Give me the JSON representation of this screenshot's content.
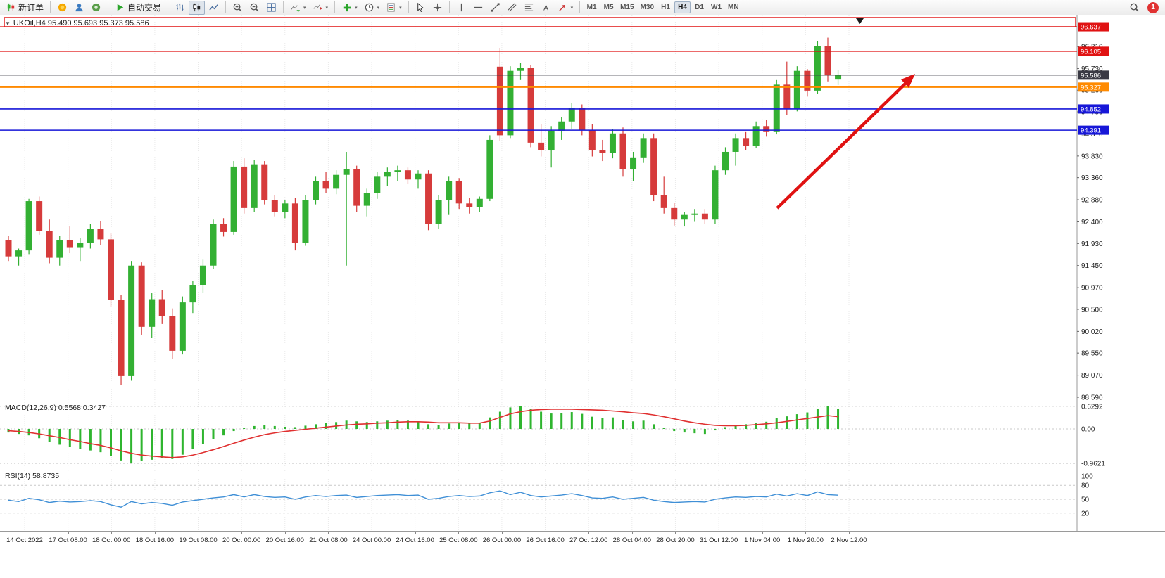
{
  "colors": {
    "up": "#33b033",
    "down": "#d63b3b",
    "accent_red": "#e01212",
    "level_blue": "#1717d8",
    "level_orange": "#ff8a00",
    "bid_dark": "#3a3a44",
    "macd_hist": "#2fb52f",
    "macd_signal": "#e03030",
    "rsi_line": "#3f8fd6"
  },
  "toolbar": {
    "items": [
      {
        "t": "btn",
        "name": "new-order-button",
        "icon": "new-order",
        "label": "新订单"
      },
      {
        "t": "sep"
      },
      {
        "t": "btn",
        "name": "metaquotes-button",
        "icon": "mq-gold"
      },
      {
        "t": "btn",
        "name": "community-button",
        "icon": "profile-blue"
      },
      {
        "t": "btn",
        "name": "mql5-button",
        "icon": "mql5-green"
      },
      {
        "t": "sep"
      },
      {
        "t": "btn",
        "name": "autotrading-button",
        "icon": "play-green",
        "label": "自动交易"
      },
      {
        "t": "sep"
      },
      {
        "t": "btn",
        "name": "bar-chart-button",
        "icon": "bar-chart"
      },
      {
        "t": "btn",
        "name": "candle-chart-button",
        "icon": "candle-chart",
        "active": true
      },
      {
        "t": "btn",
        "name": "line-chart-button",
        "icon": "line-chart"
      },
      {
        "t": "sep"
      },
      {
        "t": "btn",
        "name": "zoom-in-button",
        "icon": "zoom-in"
      },
      {
        "t": "btn",
        "name": "zoom-out-button",
        "icon": "zoom-out"
      },
      {
        "t": "btn",
        "name": "tile-windows-button",
        "icon": "tile-windows"
      },
      {
        "t": "sep"
      },
      {
        "t": "btn",
        "name": "autoscroll-button",
        "icon": "chart-scroll",
        "arrow": true
      },
      {
        "t": "btn",
        "name": "chart-shift-button",
        "icon": "chart-shift",
        "arrow": true
      },
      {
        "t": "sep"
      },
      {
        "t": "btn",
        "name": "indicators-button",
        "icon": "plus-green",
        "arrow": true
      },
      {
        "t": "btn",
        "name": "periods-button",
        "icon": "clock",
        "arrow": true
      },
      {
        "t": "btn",
        "name": "templates-button",
        "icon": "template",
        "arrow": true
      },
      {
        "t": "sep"
      },
      {
        "t": "btn",
        "name": "cursor-button",
        "icon": "cursor"
      },
      {
        "t": "btn",
        "name": "crosshair-button",
        "icon": "crosshair"
      },
      {
        "t": "sep"
      },
      {
        "t": "btn",
        "name": "vertical-line-button",
        "icon": "vline"
      },
      {
        "t": "btn",
        "name": "horizontal-line-button",
        "icon": "hline"
      },
      {
        "t": "btn",
        "name": "trendline-button",
        "icon": "trendline"
      },
      {
        "t": "btn",
        "name": "channel-button",
        "icon": "channel"
      },
      {
        "t": "btn",
        "name": "fibonacci-button",
        "icon": "fibo"
      },
      {
        "t": "btn",
        "name": "text-label-button",
        "icon": "text"
      },
      {
        "t": "btn",
        "name": "arrows-tool-button",
        "icon": "arrows",
        "arrow": true
      },
      {
        "t": "sep"
      }
    ],
    "timeframes": [
      "M1",
      "M5",
      "M15",
      "M30",
      "H1",
      "H4",
      "D1",
      "W1",
      "MN"
    ],
    "active_timeframe": "H4",
    "notification_count": "1"
  },
  "chart_data": {
    "type": "candlestick",
    "symbol": "UKOil,H4",
    "title": "UKOil,H4  95.490 95.693 95.373 95.586",
    "ohlc_display": [
      "95.490",
      "95.693",
      "95.373",
      "95.586"
    ],
    "price_axis": [
      "96.210",
      "95.730",
      "95.260",
      "94.790",
      "94.310",
      "93.830",
      "93.360",
      "92.880",
      "92.400",
      "91.930",
      "91.450",
      "90.970",
      "90.500",
      "90.020",
      "89.550",
      "89.070",
      "88.590"
    ],
    "levels": [
      {
        "price": 96.637,
        "label": "96.637",
        "color": "#e01212",
        "width": 1.4
      },
      {
        "price": 96.105,
        "label": "96.105",
        "color": "#e01212",
        "width": 1.4
      },
      {
        "price": 95.586,
        "label": "95.586",
        "color": "#3a3a44",
        "width": 1.1
      },
      {
        "price": 95.327,
        "label": "95.327",
        "color": "#ff8a00",
        "width": 2
      },
      {
        "price": 94.852,
        "label": "94.852",
        "color": "#1717d8",
        "width": 1.6
      },
      {
        "price": 94.391,
        "label": "94.391",
        "color": "#1717d8",
        "width": 1.6
      }
    ],
    "time_axis": [
      "14 Oct 2022",
      "17 Oct 08:00",
      "18 Oct 00:00",
      "18 Oct 16:00",
      "19 Oct 08:00",
      "20 Oct 00:00",
      "20 Oct 16:00",
      "21 Oct 08:00",
      "24 Oct 00:00",
      "24 Oct 16:00",
      "25 Oct 08:00",
      "26 Oct 00:00",
      "26 Oct 16:00",
      "27 Oct 12:00",
      "28 Oct 04:00",
      "28 Oct 20:00",
      "31 Oct 12:00",
      "1 Nov 04:00",
      "1 Nov 20:00",
      "2 Nov 12:00"
    ],
    "candles": [
      [
        92.0,
        92.1,
        91.55,
        91.65
      ],
      [
        91.65,
        91.82,
        91.45,
        91.78
      ],
      [
        91.78,
        92.9,
        91.7,
        92.85
      ],
      [
        92.85,
        92.95,
        92.12,
        92.2
      ],
      [
        92.2,
        92.45,
        91.5,
        91.62
      ],
      [
        91.62,
        92.1,
        91.45,
        92.0
      ],
      [
        92.0,
        92.3,
        91.72,
        91.85
      ],
      [
        91.85,
        92.05,
        91.55,
        91.95
      ],
      [
        91.95,
        92.35,
        91.82,
        92.25
      ],
      [
        92.25,
        92.42,
        91.9,
        92.02
      ],
      [
        92.02,
        92.15,
        90.55,
        90.7
      ],
      [
        90.7,
        90.82,
        88.85,
        89.05
      ],
      [
        89.05,
        91.55,
        88.95,
        91.45
      ],
      [
        91.45,
        91.52,
        89.95,
        90.12
      ],
      [
        90.12,
        90.85,
        89.88,
        90.72
      ],
      [
        90.72,
        90.92,
        90.18,
        90.35
      ],
      [
        90.35,
        90.52,
        89.42,
        89.6
      ],
      [
        89.6,
        90.78,
        89.52,
        90.65
      ],
      [
        90.65,
        91.12,
        90.42,
        91.02
      ],
      [
        91.02,
        91.58,
        90.85,
        91.45
      ],
      [
        91.45,
        92.45,
        91.38,
        92.35
      ],
      [
        92.35,
        92.48,
        92.08,
        92.18
      ],
      [
        92.18,
        93.72,
        92.12,
        93.6
      ],
      [
        93.6,
        93.78,
        92.58,
        92.7
      ],
      [
        92.7,
        93.75,
        92.62,
        93.65
      ],
      [
        93.65,
        93.72,
        92.78,
        92.88
      ],
      [
        92.88,
        92.98,
        92.52,
        92.62
      ],
      [
        92.62,
        92.88,
        92.48,
        92.8
      ],
      [
        92.8,
        92.92,
        91.78,
        91.95
      ],
      [
        91.95,
        92.98,
        91.88,
        92.88
      ],
      [
        92.88,
        93.38,
        92.78,
        93.28
      ],
      [
        93.28,
        93.48,
        93.02,
        93.12
      ],
      [
        93.12,
        93.52,
        93.0,
        93.42
      ],
      [
        93.42,
        93.92,
        91.45,
        93.55
      ],
      [
        93.55,
        93.62,
        92.62,
        92.75
      ],
      [
        92.75,
        93.12,
        92.52,
        93.02
      ],
      [
        93.02,
        93.48,
        92.9,
        93.38
      ],
      [
        93.38,
        93.58,
        93.18,
        93.48
      ],
      [
        93.48,
        93.62,
        93.28,
        93.52
      ],
      [
        93.52,
        93.58,
        93.22,
        93.32
      ],
      [
        93.32,
        93.52,
        93.12,
        93.45
      ],
      [
        93.45,
        93.52,
        92.22,
        92.35
      ],
      [
        92.35,
        92.98,
        92.25,
        92.88
      ],
      [
        92.88,
        93.38,
        92.55,
        93.28
      ],
      [
        93.28,
        93.35,
        92.68,
        92.8
      ],
      [
        92.8,
        92.92,
        92.58,
        92.72
      ],
      [
        92.72,
        92.95,
        92.62,
        92.9
      ],
      [
        92.9,
        94.28,
        92.85,
        94.18
      ],
      [
        95.77,
        96.18,
        94.15,
        94.28
      ],
      [
        94.28,
        95.78,
        94.22,
        95.68
      ],
      [
        95.68,
        95.85,
        95.48,
        95.75
      ],
      [
        95.75,
        95.8,
        94.02,
        94.12
      ],
      [
        94.12,
        94.52,
        93.82,
        93.95
      ],
      [
        93.95,
        94.48,
        93.58,
        94.38
      ],
      [
        94.38,
        94.68,
        94.18,
        94.58
      ],
      [
        94.58,
        94.98,
        94.42,
        94.88
      ],
      [
        94.88,
        94.95,
        94.28,
        94.4
      ],
      [
        94.4,
        94.52,
        93.82,
        93.95
      ],
      [
        93.95,
        94.18,
        93.72,
        93.9
      ],
      [
        93.9,
        94.42,
        93.78,
        94.32
      ],
      [
        94.32,
        94.45,
        93.38,
        93.55
      ],
      [
        93.55,
        93.92,
        93.28,
        93.8
      ],
      [
        93.8,
        94.32,
        93.68,
        94.22
      ],
      [
        94.22,
        94.32,
        92.85,
        92.98
      ],
      [
        92.98,
        93.38,
        92.58,
        92.7
      ],
      [
        92.7,
        92.82,
        92.32,
        92.45
      ],
      [
        92.45,
        92.62,
        92.3,
        92.55
      ],
      [
        92.55,
        92.68,
        92.4,
        92.58
      ],
      [
        92.58,
        92.68,
        92.35,
        92.45
      ],
      [
        92.45,
        93.62,
        92.35,
        93.52
      ],
      [
        93.52,
        94.02,
        93.42,
        93.92
      ],
      [
        93.92,
        94.32,
        93.62,
        94.22
      ],
      [
        94.22,
        94.35,
        93.95,
        94.05
      ],
      [
        94.05,
        94.58,
        94.0,
        94.48
      ],
      [
        94.48,
        94.62,
        94.25,
        94.35
      ],
      [
        94.35,
        95.48,
        94.3,
        95.38
      ],
      [
        95.38,
        95.88,
        94.72,
        94.85
      ],
      [
        94.85,
        95.78,
        94.8,
        95.68
      ],
      [
        95.68,
        95.72,
        95.12,
        95.25
      ],
      [
        95.25,
        96.32,
        95.18,
        96.22
      ],
      [
        96.22,
        96.4,
        95.45,
        95.58
      ],
      [
        95.49,
        95.693,
        95.373,
        95.586
      ]
    ],
    "macd": {
      "label": "MACD(12,26,9) 0.5568 0.3427",
      "axis": [
        {
          "v": 0.6292,
          "label": "0.6292"
        },
        {
          "v": 0,
          "label": "0.00"
        },
        {
          "v": -0.9621,
          "label": "-0.9621"
        }
      ],
      "histogram": [
        -0.1,
        -0.14,
        -0.18,
        -0.26,
        -0.36,
        -0.44,
        -0.5,
        -0.55,
        -0.6,
        -0.65,
        -0.76,
        -0.88,
        -0.9621,
        -0.9,
        -0.86,
        -0.82,
        -0.84,
        -0.72,
        -0.56,
        -0.42,
        -0.28,
        -0.18,
        -0.06,
        0.03,
        0.08,
        0.1,
        0.08,
        0.06,
        0.05,
        0.09,
        0.13,
        0.16,
        0.19,
        0.23,
        0.21,
        0.19,
        0.21,
        0.23,
        0.25,
        0.23,
        0.21,
        0.13,
        0.11,
        0.15,
        0.17,
        0.15,
        0.16,
        0.32,
        0.48,
        0.6,
        0.63,
        0.55,
        0.48,
        0.43,
        0.45,
        0.47,
        0.42,
        0.34,
        0.3,
        0.32,
        0.24,
        0.21,
        0.23,
        0.13,
        0.03,
        -0.06,
        -0.1,
        -0.12,
        -0.14,
        -0.04,
        0.05,
        0.11,
        0.13,
        0.17,
        0.2,
        0.3,
        0.35,
        0.41,
        0.46,
        0.55,
        0.6292,
        0.5568
      ],
      "signal": [
        -0.05,
        -0.07,
        -0.1,
        -0.14,
        -0.19,
        -0.24,
        -0.3,
        -0.35,
        -0.41,
        -0.46,
        -0.53,
        -0.61,
        -0.68,
        -0.73,
        -0.76,
        -0.78,
        -0.8,
        -0.78,
        -0.73,
        -0.66,
        -0.58,
        -0.49,
        -0.4,
        -0.31,
        -0.23,
        -0.16,
        -0.11,
        -0.07,
        -0.04,
        -0.01,
        0.02,
        0.05,
        0.08,
        0.11,
        0.13,
        0.14,
        0.16,
        0.17,
        0.19,
        0.2,
        0.2,
        0.19,
        0.17,
        0.17,
        0.17,
        0.16,
        0.16,
        0.22,
        0.32,
        0.42,
        0.48,
        0.52,
        0.54,
        0.55,
        0.55,
        0.55,
        0.54,
        0.53,
        0.52,
        0.5,
        0.48,
        0.45,
        0.43,
        0.39,
        0.34,
        0.28,
        0.22,
        0.17,
        0.13,
        0.1,
        0.09,
        0.09,
        0.1,
        0.12,
        0.14,
        0.17,
        0.21,
        0.25,
        0.29,
        0.33,
        0.37,
        0.3427
      ]
    },
    "rsi": {
      "label": "RSI(14) 58.8735",
      "axis": [
        {
          "v": 100,
          "label": "100"
        },
        {
          "v": 80,
          "label": "80"
        },
        {
          "v": 50,
          "label": "50"
        },
        {
          "v": 20,
          "label": "20"
        }
      ],
      "dashed_levels": [
        80,
        50,
        20
      ],
      "values": [
        48,
        45,
        52,
        49,
        43,
        46,
        44,
        45,
        47,
        45,
        38,
        33,
        45,
        40,
        43,
        41,
        37,
        44,
        47,
        50,
        53,
        55,
        60,
        55,
        60,
        56,
        54,
        55,
        50,
        55,
        58,
        56,
        58,
        59,
        54,
        56,
        58,
        59,
        60,
        58,
        59,
        50,
        52,
        56,
        58,
        56,
        57,
        64,
        68,
        60,
        65,
        58,
        55,
        57,
        59,
        62,
        58,
        53,
        52,
        55,
        50,
        52,
        54,
        48,
        45,
        43,
        44,
        45,
        44,
        50,
        53,
        55,
        54,
        56,
        55,
        61,
        57,
        62,
        58,
        66,
        60,
        58.8735
      ]
    }
  }
}
